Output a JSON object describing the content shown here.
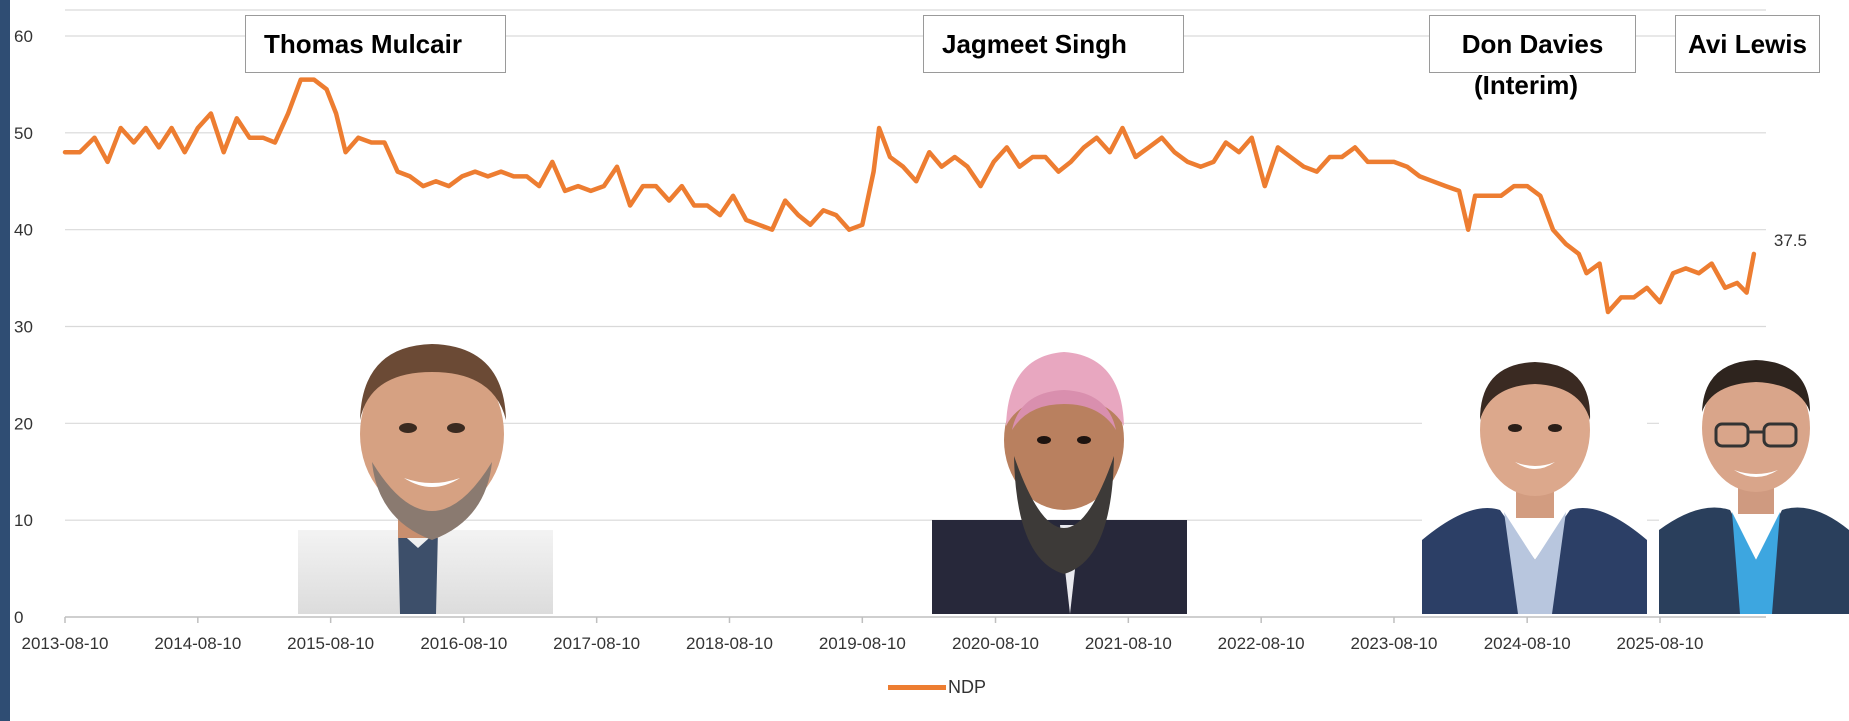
{
  "chart_data": {
    "type": "line",
    "series": [
      {
        "name": "NDP",
        "color": "#ED7D31",
        "points": [
          [
            "2013-08-10",
            48
          ],
          [
            "2013-09-20",
            48
          ],
          [
            "2013-10-30",
            49.5
          ],
          [
            "2013-12-05",
            47
          ],
          [
            "2014-01-10",
            50.5
          ],
          [
            "2014-02-15",
            49
          ],
          [
            "2014-03-20",
            50.5
          ],
          [
            "2014-04-25",
            48.5
          ],
          [
            "2014-05-30",
            50.5
          ],
          [
            "2014-07-05",
            48
          ],
          [
            "2014-08-10",
            50.5
          ],
          [
            "2014-09-15",
            52
          ],
          [
            "2014-10-20",
            48
          ],
          [
            "2014-11-25",
            51.5
          ],
          [
            "2014-12-30",
            49.5
          ],
          [
            "2015-02-05",
            49.5
          ],
          [
            "2015-03-10",
            49
          ],
          [
            "2015-04-15",
            52
          ],
          [
            "2015-05-20",
            55.5
          ],
          [
            "2015-06-25",
            55.5
          ],
          [
            "2015-07-30",
            54.5
          ],
          [
            "2015-08-25",
            52
          ],
          [
            "2015-09-20",
            48
          ],
          [
            "2015-10-25",
            49.5
          ],
          [
            "2015-11-30",
            49
          ],
          [
            "2016-01-05",
            49
          ],
          [
            "2016-02-10",
            46
          ],
          [
            "2016-03-15",
            45.5
          ],
          [
            "2016-04-20",
            44.5
          ],
          [
            "2016-05-25",
            45
          ],
          [
            "2016-06-30",
            44.5
          ],
          [
            "2016-08-05",
            45.5
          ],
          [
            "2016-09-10",
            46
          ],
          [
            "2016-10-15",
            45.5
          ],
          [
            "2016-11-20",
            46
          ],
          [
            "2016-12-25",
            45.5
          ],
          [
            "2017-01-30",
            45.5
          ],
          [
            "2017-03-05",
            44.5
          ],
          [
            "2017-04-10",
            47
          ],
          [
            "2017-05-15",
            44
          ],
          [
            "2017-06-20",
            44.5
          ],
          [
            "2017-07-25",
            44
          ],
          [
            "2017-08-30",
            44.5
          ],
          [
            "2017-10-05",
            46.5
          ],
          [
            "2017-11-10",
            42.5
          ],
          [
            "2017-12-15",
            44.5
          ],
          [
            "2018-01-20",
            44.5
          ],
          [
            "2018-02-25",
            43
          ],
          [
            "2018-04-01",
            44.5
          ],
          [
            "2018-05-05",
            42.5
          ],
          [
            "2018-06-10",
            42.5
          ],
          [
            "2018-07-15",
            41.5
          ],
          [
            "2018-08-20",
            43.5
          ],
          [
            "2018-09-25",
            41
          ],
          [
            "2018-10-30",
            40.5
          ],
          [
            "2018-12-05",
            40
          ],
          [
            "2019-01-10",
            43
          ],
          [
            "2019-02-15",
            41.5
          ],
          [
            "2019-03-20",
            40.5
          ],
          [
            "2019-04-25",
            42
          ],
          [
            "2019-05-30",
            41.5
          ],
          [
            "2019-07-05",
            40
          ],
          [
            "2019-08-10",
            40.5
          ],
          [
            "2019-09-10",
            46
          ],
          [
            "2019-09-25",
            50.5
          ],
          [
            "2019-10-25",
            47.5
          ],
          [
            "2019-11-30",
            46.5
          ],
          [
            "2020-01-05",
            45
          ],
          [
            "2020-02-10",
            48
          ],
          [
            "2020-03-15",
            46.5
          ],
          [
            "2020-04-20",
            47.5
          ],
          [
            "2020-05-25",
            46.5
          ],
          [
            "2020-06-30",
            44.5
          ],
          [
            "2020-08-05",
            47
          ],
          [
            "2020-09-10",
            48.5
          ],
          [
            "2020-10-15",
            46.5
          ],
          [
            "2020-11-20",
            47.5
          ],
          [
            "2020-12-25",
            47.5
          ],
          [
            "2021-01-30",
            46
          ],
          [
            "2021-03-05",
            47
          ],
          [
            "2021-04-10",
            48.5
          ],
          [
            "2021-05-15",
            49.5
          ],
          [
            "2021-06-20",
            48
          ],
          [
            "2021-07-25",
            50.5
          ],
          [
            "2021-08-30",
            47.5
          ],
          [
            "2021-10-05",
            48.5
          ],
          [
            "2021-11-10",
            49.5
          ],
          [
            "2021-12-15",
            48
          ],
          [
            "2022-01-20",
            47
          ],
          [
            "2022-02-25",
            46.5
          ],
          [
            "2022-04-01",
            47
          ],
          [
            "2022-05-05",
            49
          ],
          [
            "2022-06-10",
            48
          ],
          [
            "2022-07-15",
            49.5
          ],
          [
            "2022-08-20",
            44.5
          ],
          [
            "2022-09-25",
            48.5
          ],
          [
            "2022-10-30",
            47.5
          ],
          [
            "2022-12-05",
            46.5
          ],
          [
            "2023-01-10",
            46
          ],
          [
            "2023-02-15",
            47.5
          ],
          [
            "2023-03-20",
            47.5
          ],
          [
            "2023-04-25",
            48.5
          ],
          [
            "2023-05-30",
            47
          ],
          [
            "2023-07-05",
            47
          ],
          [
            "2023-08-10",
            47
          ],
          [
            "2023-09-15",
            46.5
          ],
          [
            "2023-10-20",
            45.5
          ],
          [
            "2023-11-25",
            45
          ],
          [
            "2023-12-30",
            44.5
          ],
          [
            "2024-02-05",
            44
          ],
          [
            "2024-03-01",
            40
          ],
          [
            "2024-03-20",
            43.5
          ],
          [
            "2024-04-25",
            43.5
          ],
          [
            "2024-05-30",
            43.5
          ],
          [
            "2024-07-05",
            44.5
          ],
          [
            "2024-08-10",
            44.5
          ],
          [
            "2024-09-15",
            43.5
          ],
          [
            "2024-10-20",
            40
          ],
          [
            "2024-11-25",
            38.5
          ],
          [
            "2024-12-30",
            37.5
          ],
          [
            "2025-01-20",
            35.5
          ],
          [
            "2025-02-25",
            36.5
          ],
          [
            "2025-03-20",
            31.5
          ],
          [
            "2025-04-25",
            33
          ],
          [
            "2025-05-30",
            33
          ],
          [
            "2025-07-05",
            34
          ],
          [
            "2025-08-10",
            32.5
          ],
          [
            "2025-09-15",
            35.5
          ],
          [
            "2025-10-20",
            36
          ],
          [
            "2025-11-25",
            35.5
          ],
          [
            "2025-12-30",
            36.5
          ],
          [
            "2026-02-05",
            34
          ],
          [
            "2026-03-10",
            34.5
          ],
          [
            "2026-04-05",
            33.5
          ],
          [
            "2026-04-25",
            37.5
          ]
        ]
      }
    ],
    "x_tick_labels": [
      "2013-08-10",
      "2014-08-10",
      "2015-08-10",
      "2016-08-10",
      "2017-08-10",
      "2018-08-10",
      "2019-08-10",
      "2020-08-10",
      "2021-08-10",
      "2022-08-10",
      "2023-08-10",
      "2024-08-10",
      "2025-08-10"
    ],
    "y_tick_labels": [
      "0",
      "10",
      "20",
      "30",
      "40",
      "50",
      "60"
    ],
    "xlim": [
      "2013-08-10",
      "2026-05-01"
    ],
    "ylim": [
      0,
      60
    ],
    "grid": true,
    "last_value_label": "37.5",
    "legend": {
      "position": "bottom",
      "entries": [
        "NDP"
      ]
    },
    "annotations": {
      "mulcair": {
        "name": "Thomas Mulcair"
      },
      "singh": {
        "name": "Jagmeet Singh"
      },
      "davies": {
        "name": "Don Davies",
        "note": "(Interim)"
      },
      "lewis": {
        "name": "Avi Lewis"
      }
    }
  },
  "photos": {
    "mulcair": "thomas-mulcair-photo",
    "singh": "jagmeet-singh-photo",
    "davies": "don-davies-photo",
    "lewis": "avi-lewis-photo"
  }
}
